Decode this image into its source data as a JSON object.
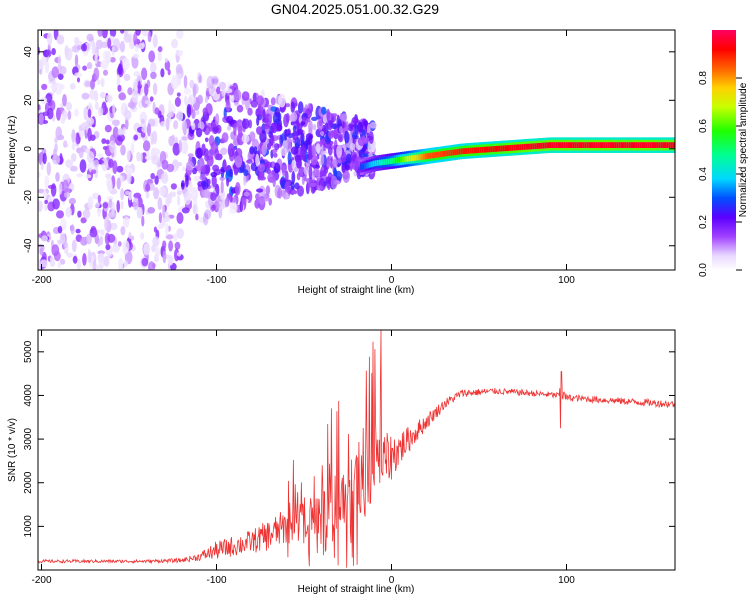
{
  "figure": {
    "title": "GN04.2025.051.00.32.G29"
  },
  "chart_data": [
    {
      "type": "heatmap",
      "xlabel": "Height of straight line (km)",
      "ylabel": "Frequency (Hz)",
      "xlim": [
        -202,
        162
      ],
      "ylim": [
        -50,
        49
      ],
      "x_ticks": [
        -200,
        -100,
        0,
        100
      ],
      "x_tick_labels": [
        "-200",
        "-100",
        "0",
        "100"
      ],
      "y_ticks": [
        -40,
        -20,
        0,
        20,
        40
      ],
      "y_tick_labels": [
        "-40",
        "-20",
        "0",
        "20",
        "40"
      ],
      "colorbar": {
        "label": "Normalized spectral amplitude",
        "range": [
          0,
          1
        ],
        "ticks": [
          0,
          0.2,
          0.4,
          0.6,
          0.8
        ],
        "tick_labels": [
          "0.0",
          "0.2",
          "0.4",
          "0.6",
          "0.8"
        ]
      },
      "ridge": {
        "description_points_x": [
          -20,
          -10,
          0,
          10,
          20,
          40,
          60,
          80,
          90,
          120,
          160
        ],
        "frequency": [
          -8,
          -6,
          -5,
          -4,
          -3,
          -1,
          0,
          1,
          1.5,
          1.5,
          1.5
        ],
        "amplitude": [
          0.25,
          0.4,
          0.5,
          0.7,
          0.85,
          0.9,
          0.92,
          0.95,
          0.95,
          0.95,
          0.95
        ]
      },
      "grid": false
    },
    {
      "type": "line",
      "xlabel": "Height of straight line (km)",
      "ylabel": "SNR (10 * v/v)",
      "xlim": [
        -202,
        162
      ],
      "ylim": [
        0,
        5500
      ],
      "x_ticks": [
        -200,
        -100,
        0,
        100
      ],
      "x_tick_labels": [
        "-200",
        "-100",
        "0",
        "100"
      ],
      "y_ticks": [
        1000,
        2000,
        3000,
        4000,
        5000
      ],
      "y_tick_labels": [
        "1000",
        "2000",
        "3000",
        "4000",
        "5000"
      ],
      "series": [
        {
          "color": "#ee3333",
          "x": [
            -202,
            -180,
            -160,
            -140,
            -120,
            -110,
            -100,
            -90,
            -80,
            -70,
            -60,
            -50,
            -40,
            -30,
            -20,
            -10,
            0,
            10,
            20,
            30,
            40,
            60,
            80,
            95,
            97,
            100,
            120,
            140,
            162
          ],
          "y": [
            200,
            200,
            200,
            200,
            220,
            300,
            450,
            550,
            650,
            800,
            1000,
            1200,
            1400,
            1600,
            1900,
            2300,
            2600,
            3000,
            3400,
            3800,
            4050,
            4100,
            4050,
            4000,
            4050,
            3950,
            3900,
            3850,
            3800
          ],
          "spread": [
            60,
            60,
            60,
            60,
            80,
            150,
            350,
            400,
            450,
            600,
            700,
            800,
            900,
            1100,
            1300,
            1400,
            900,
            500,
            300,
            200,
            150,
            120,
            120,
            120,
            300,
            130,
            130,
            130,
            150
          ]
        }
      ],
      "grid": false
    }
  ]
}
